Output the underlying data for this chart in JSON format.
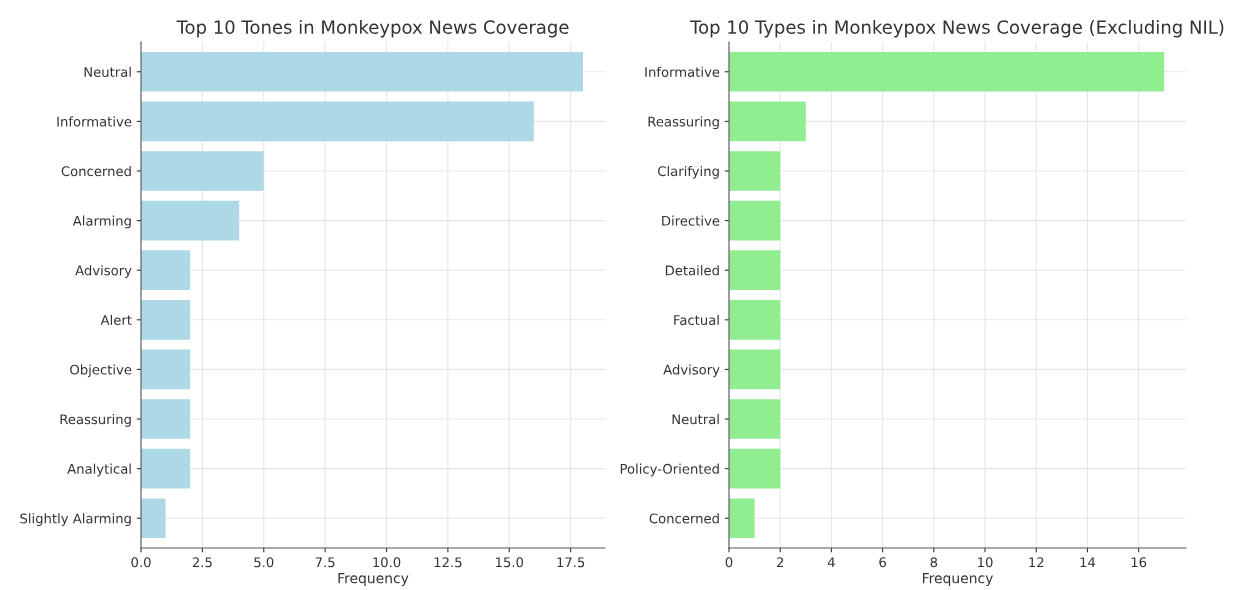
{
  "chart_data": [
    {
      "type": "bar",
      "orientation": "horizontal",
      "title": "Top 10 Tones in Monkeypox News Coverage",
      "xlabel": "Frequency",
      "categories": [
        "Neutral",
        "Informative",
        "Concerned",
        "Alarming",
        "Advisory",
        "Alert",
        "Objective",
        "Reassuring",
        "Analytical",
        "Slightly Alarming"
      ],
      "values": [
        18,
        16,
        5,
        4,
        2,
        2,
        2,
        2,
        2,
        1
      ],
      "color": "#add8e6",
      "xlim": [
        0,
        18.9
      ],
      "xticks": [
        {
          "value": 0,
          "label": "0.0"
        },
        2.5,
        {
          "value": 5,
          "label": "5.0"
        },
        7.5,
        {
          "value": 10,
          "label": "10.0"
        },
        12.5,
        {
          "value": 15,
          "label": "15.0"
        },
        17.5
      ],
      "grid": true
    },
    {
      "type": "bar",
      "orientation": "horizontal",
      "title": "Top 10 Types in Monkeypox News Coverage (Excluding NIL)",
      "xlabel": "Frequency",
      "categories": [
        "Informative",
        "Reassuring",
        "Clarifying",
        "Directive",
        "Detailed",
        "Factual",
        "Advisory",
        "Neutral",
        "Policy-Oriented",
        "Concerned"
      ],
      "values": [
        17,
        3,
        2,
        2,
        2,
        2,
        2,
        2,
        2,
        1
      ],
      "color": "#90ee90",
      "xlim": [
        0,
        17.85
      ],
      "xticks": [
        0,
        2,
        4,
        6,
        8,
        10,
        12,
        14,
        16
      ],
      "grid": true
    }
  ]
}
